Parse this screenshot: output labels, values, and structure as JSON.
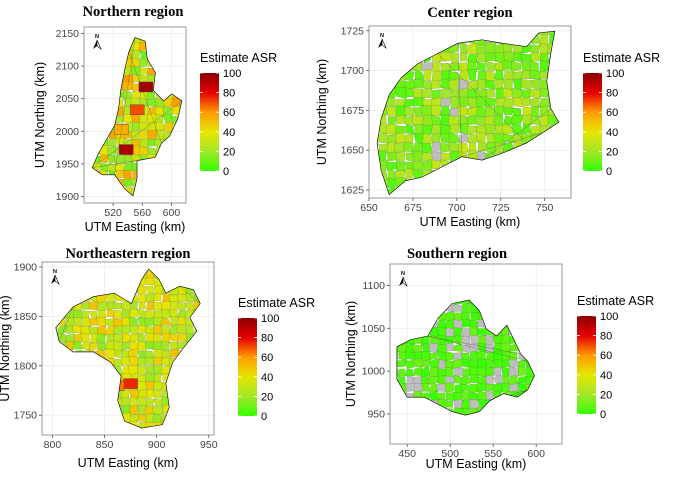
{
  "figure": {
    "type": "choropleth_map_panels",
    "colors": {
      "low": "#33ff00",
      "mid_low": "#a4e628",
      "mid": "#e6e600",
      "mid_high": "#ff9a00",
      "high": "#e60000",
      "max": "#8b0000",
      "missing": "#bebebe"
    }
  },
  "chart_data": [
    {
      "type": "map",
      "title": "Northern region",
      "xlabel": "UTM Easting (km)",
      "ylabel": "UTM Northing (km)",
      "xlim": [
        480,
        620
      ],
      "ylim": [
        1890,
        2160
      ],
      "x_ticks": [
        520,
        560,
        600
      ],
      "y_ticks": [
        1900,
        1950,
        2000,
        2050,
        2100,
        2150
      ],
      "legend": {
        "title": "Estimate ASR",
        "ticks": [
          0,
          20,
          40,
          60,
          80,
          100
        ],
        "range": [
          0,
          100
        ]
      },
      "north_arrow": "N",
      "dominant_range": [
        10,
        60
      ],
      "hotspots": [
        {
          "x": 565,
          "y": 2068,
          "value": 95
        },
        {
          "x": 538,
          "y": 1972,
          "value": 92
        },
        {
          "x": 553,
          "y": 2033,
          "value": 70
        },
        {
          "x": 531,
          "y": 2003,
          "value": 55
        }
      ]
    },
    {
      "type": "map",
      "title": "Center region",
      "xlabel": "UTM Easting (km)",
      "ylabel": "UTM Northing (km)",
      "xlim": [
        650,
        765
      ],
      "ylim": [
        1620,
        1728
      ],
      "x_ticks": [
        650,
        675,
        700,
        725,
        750
      ],
      "y_ticks": [
        1625,
        1650,
        1675,
        1700,
        1725
      ],
      "legend": {
        "title": "Estimate ASR",
        "ticks": [
          0,
          20,
          40,
          60,
          80,
          100
        ],
        "range": [
          0,
          100
        ]
      },
      "north_arrow": "N",
      "dominant_range": [
        5,
        30
      ],
      "missing_areas": 5
    },
    {
      "type": "map",
      "title": "Northeastern region",
      "xlabel": "UTM Easting (km)",
      "ylabel": "UTM Northing (km)",
      "xlim": [
        790,
        955
      ],
      "ylim": [
        1730,
        1905
      ],
      "x_ticks": [
        800,
        850,
        900,
        950
      ],
      "y_ticks": [
        1750,
        1800,
        1850,
        1900
      ],
      "legend": {
        "title": "Estimate ASR",
        "ticks": [
          0,
          20,
          40,
          60,
          80,
          100
        ],
        "range": [
          0,
          100
        ]
      },
      "north_arrow": "N",
      "dominant_range": [
        15,
        50
      ],
      "hotspots": [
        {
          "x": 875,
          "y": 1782,
          "value": 75
        },
        {
          "x": 862,
          "y": 1780,
          "value": 65
        }
      ]
    },
    {
      "type": "map",
      "title": "Southern region",
      "xlabel": "UTM Easting (km)",
      "ylabel": "UTM Northing (km)",
      "xlim": [
        430,
        630
      ],
      "ylim": [
        915,
        1125
      ],
      "x_ticks": [
        450,
        500,
        550,
        600
      ],
      "y_ticks": [
        950,
        1000,
        1050,
        1100
      ],
      "legend": {
        "title": "Estimate ASR",
        "ticks": [
          0,
          20,
          40,
          60,
          80,
          100
        ],
        "range": [
          0,
          100
        ]
      },
      "north_arrow": "N",
      "dominant_range": [
        0,
        10
      ],
      "missing_areas": 9
    }
  ]
}
